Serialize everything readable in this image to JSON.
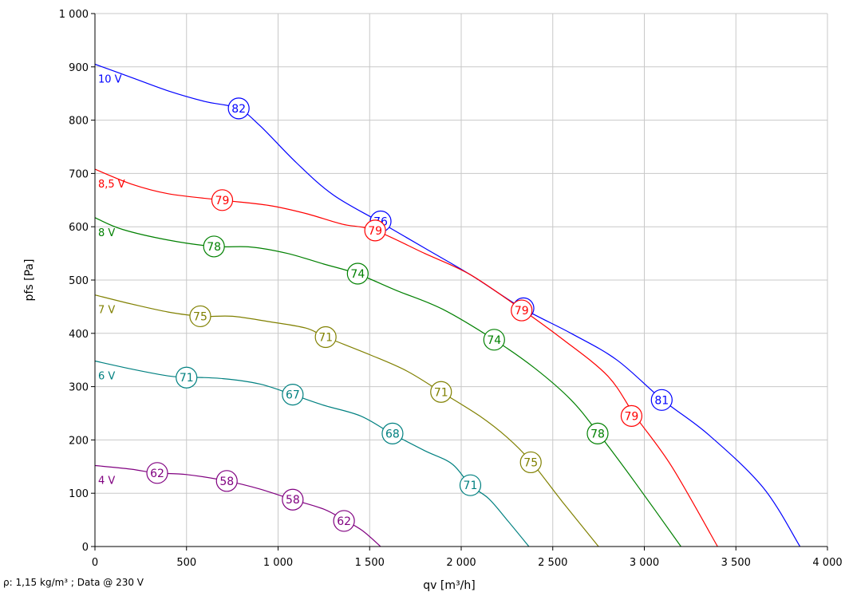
{
  "chart_data": {
    "type": "line",
    "xlabel": "qv [m³/h]",
    "ylabel": "pfs [Pa]",
    "xlim": [
      0,
      4000
    ],
    "ylim": [
      0,
      1000
    ],
    "x_ticks": [
      0,
      500,
      1000,
      1500,
      2000,
      2500,
      3000,
      3500,
      4000
    ],
    "y_ticks": [
      0,
      100,
      200,
      300,
      400,
      500,
      600,
      700,
      800,
      900,
      1000
    ],
    "x_tick_labels": [
      "0",
      "500",
      "1 000",
      "1 500",
      "2 000",
      "2 500",
      "3 000",
      "3 500",
      "4 000"
    ],
    "y_tick_labels": [
      "0",
      "100",
      "200",
      "300",
      "400",
      "500",
      "600",
      "700",
      "800",
      "900",
      "1 000"
    ],
    "grid": true,
    "series": [
      {
        "name": "10 V",
        "color": "#0000ff",
        "points": [
          [
            0,
            905
          ],
          [
            200,
            880
          ],
          [
            400,
            855
          ],
          [
            600,
            835
          ],
          [
            780,
            822
          ],
          [
            900,
            790
          ],
          [
            1100,
            720
          ],
          [
            1300,
            660
          ],
          [
            1550,
            610
          ],
          [
            1800,
            560
          ],
          [
            2050,
            510
          ],
          [
            2330,
            448
          ],
          [
            2600,
            400
          ],
          [
            2850,
            350
          ],
          [
            3100,
            275
          ],
          [
            3350,
            210
          ],
          [
            3650,
            110
          ],
          [
            3850,
            0
          ]
        ],
        "markers": [
          {
            "x": 785,
            "y": 822,
            "label": "82"
          },
          {
            "x": 1560,
            "y": 610,
            "label": "76"
          },
          {
            "x": 2340,
            "y": 447,
            "label": "76"
          },
          {
            "x": 3095,
            "y": 275,
            "label": "81"
          }
        ]
      },
      {
        "name": "8,5 V",
        "color": "#ff0000",
        "points": [
          [
            0,
            708
          ],
          [
            200,
            680
          ],
          [
            400,
            662
          ],
          [
            690,
            650
          ],
          [
            950,
            640
          ],
          [
            1150,
            625
          ],
          [
            1350,
            605
          ],
          [
            1530,
            593
          ],
          [
            1800,
            550
          ],
          [
            2050,
            510
          ],
          [
            2330,
            445
          ],
          [
            2550,
            390
          ],
          [
            2800,
            320
          ],
          [
            2950,
            245
          ],
          [
            3150,
            150
          ],
          [
            3400,
            0
          ]
        ],
        "markers": [
          {
            "x": 695,
            "y": 650,
            "label": "79"
          },
          {
            "x": 1530,
            "y": 593,
            "label": "79"
          },
          {
            "x": 2330,
            "y": 443,
            "label": "79"
          },
          {
            "x": 2930,
            "y": 245,
            "label": "79"
          }
        ]
      },
      {
        "name": "8 V",
        "color": "#008000",
        "points": [
          [
            0,
            617
          ],
          [
            150,
            595
          ],
          [
            400,
            575
          ],
          [
            650,
            563
          ],
          [
            850,
            562
          ],
          [
            1050,
            550
          ],
          [
            1250,
            530
          ],
          [
            1430,
            512
          ],
          [
            1650,
            480
          ],
          [
            1900,
            445
          ],
          [
            2180,
            388
          ],
          [
            2400,
            335
          ],
          [
            2600,
            275
          ],
          [
            2750,
            212
          ],
          [
            2950,
            120
          ],
          [
            3200,
            0
          ]
        ],
        "markers": [
          {
            "x": 650,
            "y": 563,
            "label": "78"
          },
          {
            "x": 1435,
            "y": 512,
            "label": "74"
          },
          {
            "x": 2180,
            "y": 388,
            "label": "74"
          },
          {
            "x": 2745,
            "y": 212,
            "label": "78"
          }
        ]
      },
      {
        "name": "7 V",
        "color": "#808000",
        "points": [
          [
            0,
            472
          ],
          [
            200,
            455
          ],
          [
            400,
            440
          ],
          [
            580,
            432
          ],
          [
            750,
            432
          ],
          [
            950,
            422
          ],
          [
            1150,
            410
          ],
          [
            1260,
            393
          ],
          [
            1500,
            360
          ],
          [
            1700,
            330
          ],
          [
            1890,
            290
          ],
          [
            2100,
            245
          ],
          [
            2250,
            205
          ],
          [
            2380,
            160
          ],
          [
            2550,
            85
          ],
          [
            2750,
            0
          ]
        ],
        "markers": [
          {
            "x": 575,
            "y": 432,
            "label": "75"
          },
          {
            "x": 1260,
            "y": 393,
            "label": "71"
          },
          {
            "x": 1890,
            "y": 290,
            "label": "71"
          },
          {
            "x": 2380,
            "y": 158,
            "label": "75"
          }
        ]
      },
      {
        "name": "6 V",
        "color": "#008080",
        "points": [
          [
            0,
            348
          ],
          [
            200,
            333
          ],
          [
            400,
            320
          ],
          [
            500,
            318
          ],
          [
            700,
            315
          ],
          [
            900,
            305
          ],
          [
            1080,
            285
          ],
          [
            1250,
            265
          ],
          [
            1450,
            245
          ],
          [
            1620,
            212
          ],
          [
            1800,
            180
          ],
          [
            1950,
            155
          ],
          [
            2050,
            115
          ],
          [
            2150,
            90
          ],
          [
            2250,
            50
          ],
          [
            2370,
            0
          ]
        ],
        "markers": [
          {
            "x": 500,
            "y": 317,
            "label": "71"
          },
          {
            "x": 1080,
            "y": 285,
            "label": "67"
          },
          {
            "x": 1625,
            "y": 212,
            "label": "68"
          },
          {
            "x": 2050,
            "y": 115,
            "label": "71"
          }
        ]
      },
      {
        "name": "4 V",
        "color": "#800080",
        "points": [
          [
            0,
            152
          ],
          [
            200,
            145
          ],
          [
            330,
            138
          ],
          [
            500,
            135
          ],
          [
            720,
            123
          ],
          [
            900,
            108
          ],
          [
            1080,
            88
          ],
          [
            1250,
            70
          ],
          [
            1360,
            50
          ],
          [
            1460,
            30
          ],
          [
            1560,
            0
          ]
        ],
        "markers": [
          {
            "x": 340,
            "y": 138,
            "label": "62"
          },
          {
            "x": 720,
            "y": 123,
            "label": "58"
          },
          {
            "x": 1080,
            "y": 88,
            "label": "58"
          },
          {
            "x": 1360,
            "y": 48,
            "label": "62"
          }
        ]
      }
    ]
  },
  "footnote": "ρ: 1,15 kg/m³ ; Data @ 230 V"
}
